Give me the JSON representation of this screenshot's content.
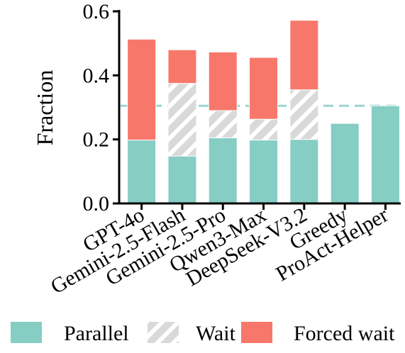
{
  "chart_data": {
    "type": "bar",
    "stacked": true,
    "categories": [
      "GPT-4o",
      "Gemini-2.5-Flash",
      "Gemini-2.5-Pro",
      "Qwen3-Max",
      "DeepSeek-V3.2",
      "Greedy",
      "ProAct-Helper"
    ],
    "series": [
      {
        "name": "Parallel",
        "values": [
          0.198,
          0.148,
          0.205,
          0.198,
          0.2,
          0.25,
          0.305
        ],
        "color": "#86cdc4",
        "pattern": "solid"
      },
      {
        "name": "Wait",
        "values": [
          0.0,
          0.227,
          0.085,
          0.065,
          0.155,
          0.0,
          0.0
        ],
        "color": "#d9d9d9",
        "pattern": "hatch"
      },
      {
        "name": "Forced wait",
        "values": [
          0.315,
          0.105,
          0.183,
          0.193,
          0.217,
          0.0,
          0.0
        ],
        "color": "#f7786b",
        "pattern": "solid"
      }
    ],
    "xlabel": "",
    "ylabel": "Fraction",
    "ylim": [
      0,
      0.6
    ],
    "yticks": [
      "0.0",
      "0.2",
      "0.4",
      "0.6"
    ],
    "reference_line": {
      "value": 0.305,
      "style": "dashed",
      "color": "#9ad6cf"
    },
    "legend_position": "bottom",
    "grid": false
  }
}
